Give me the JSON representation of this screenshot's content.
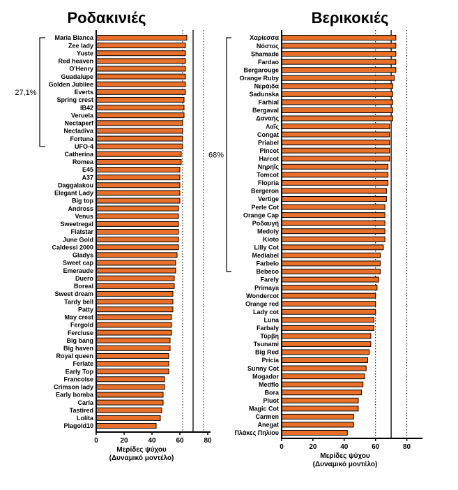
{
  "chart_data": [
    {
      "type": "bar",
      "orientation": "horizontal",
      "title": "Ροδακινιές",
      "xlabel": [
        "Μερίδες ψύχου",
        "(Δυναμικό μοντέλο)"
      ],
      "xlim": [
        0,
        82
      ],
      "xticks": [
        0,
        20,
        40,
        60,
        80
      ],
      "reference_lines": [
        {
          "value": 62,
          "style": "dotted"
        },
        {
          "value": 69.5,
          "style": "solid"
        },
        {
          "value": 77,
          "style": "dotted"
        }
      ],
      "bar_color": "#e8702a",
      "categories": [
        "Maria Bianca",
        "Zee lady",
        "Yuste",
        "Red heaven",
        "O'Henry",
        "Guadalupe",
        "Golden Jubilee",
        "Everts",
        "Spring crest",
        "IB42",
        "Veruela",
        "Nectaperf",
        "Nectadiva",
        "Fortuna",
        "UFO-4",
        "Catherina",
        "Romea",
        "E45",
        "A37",
        "Daggalakou",
        "Elegant Lady",
        "Big top",
        "Andross",
        "Venus",
        "Sweetregal",
        "Flatstar",
        "June Gold",
        "Caldessi 2000",
        "Gladys",
        "Sweet cap",
        "Emeraude",
        "Duero",
        "Boreal",
        "Sweet dream",
        "Tardy bell",
        "Patty",
        "May crest",
        "Fergold",
        "Fercluse",
        "Big bang",
        "Big haven",
        "Royal queen",
        "Ferlate",
        "Early Top",
        "Francoise",
        "Crimson lady",
        "Early bomba",
        "Carla",
        "Tastired",
        "Lolita",
        "Plagold10"
      ],
      "values": [
        65,
        64,
        64,
        64,
        64,
        64,
        64,
        64,
        63,
        63,
        63,
        62,
        62,
        62,
        62,
        61,
        61,
        60,
        60,
        60,
        60,
        60,
        59,
        59,
        59,
        59,
        59,
        59,
        58,
        57,
        57,
        56,
        56,
        55,
        55,
        55,
        54,
        54,
        54,
        53,
        53,
        52,
        52,
        52,
        49,
        49,
        48,
        48,
        47,
        46,
        43
      ],
      "brackets": [
        {
          "label": "27,1%",
          "from": "Maria Bianca",
          "to": "UFO-4"
        }
      ]
    },
    {
      "type": "bar",
      "orientation": "horizontal",
      "title": "Βερικοκιές",
      "xlabel": [
        "Μερίδες ψύχου",
        "(Δυναμικό μοντέλο)"
      ],
      "xlim": [
        0,
        90
      ],
      "xticks": [
        0,
        20,
        40,
        60,
        80
      ],
      "reference_lines": [
        {
          "value": 60,
          "style": "dotted"
        },
        {
          "value": 70,
          "style": "solid"
        },
        {
          "value": 80,
          "style": "dotted"
        }
      ],
      "bar_color": "#e8702a",
      "categories": [
        "Χαρίεσσα",
        "Νόστος",
        "Shamade",
        "Fardao",
        "Bergarouge",
        "Orange Ruby",
        "Νεράιδα",
        "Sadunska",
        "Farhial",
        "Bergaval",
        "Δαναής",
        "Λαΐς",
        "Congat",
        "Priabel",
        "Pincot",
        "Harcot",
        "Νηρηΐς",
        "Tomcot",
        "Flopria",
        "Bergeron",
        "Vertige",
        "Perle Cot",
        "Orange Cap",
        "Ροδαυγή",
        "Medoly",
        "Kioto",
        "Lilly Cot",
        "Mediabel",
        "Farbelo",
        "Bebeco",
        "Farely",
        "Primaya",
        "Wondercot",
        "Orange red",
        "Lady cot",
        "Luna",
        "Farbaly",
        "Τύρβη",
        "Tsunami",
        "Big Red",
        "Pricia",
        "Sunny Cot",
        "Mogador",
        "Medflo",
        "Bora",
        "Pluot",
        "Magic Cot",
        "Carmen",
        "Anegat",
        "Πλάκες Πηλίου"
      ],
      "values": [
        73,
        73,
        73,
        73,
        73,
        72,
        71,
        71,
        71,
        71,
        71,
        69,
        69,
        69,
        69,
        69,
        68,
        68,
        68,
        67,
        67,
        66,
        66,
        66,
        66,
        66,
        65,
        63,
        63,
        63,
        62,
        61,
        60,
        60,
        60,
        59,
        59,
        57,
        57,
        56,
        55,
        54,
        53,
        52,
        51,
        49,
        49,
        46,
        46,
        42
      ],
      "brackets": [
        {
          "label": "68%",
          "from": "Χαρίεσσα",
          "to": "Bebeco"
        }
      ]
    }
  ]
}
